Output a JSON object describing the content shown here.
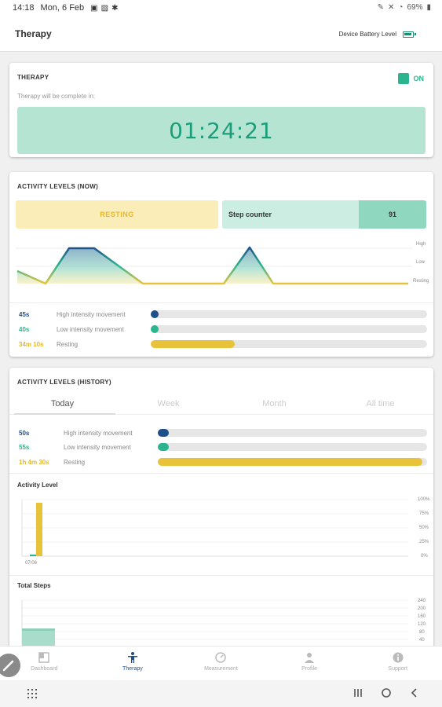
{
  "status": {
    "time": "14:18",
    "date": "Mon, 6 Feb",
    "battery": "69%"
  },
  "appbar": {
    "title": "Therapy",
    "battery_label": "Device Battery Level"
  },
  "therapy": {
    "title": "THERAPY",
    "toggle_label": "ON",
    "subtitle": "Therapy will be complete in:",
    "timer": "01:24:21"
  },
  "now": {
    "title": "ACTIVITY LEVELS (NOW)",
    "state": "RESTING",
    "step_label": "Step counter",
    "step_value": "91",
    "axis": [
      "High",
      "Low",
      "Resting"
    ],
    "rows": [
      {
        "duration": "45s",
        "name": "High intensity movement",
        "fraction": 0.0
      },
      {
        "duration": "40s",
        "name": "Low intensity movement",
        "fraction": 0.0
      },
      {
        "duration": "34m 10s",
        "name": "Resting",
        "fraction": 0.3
      }
    ]
  },
  "history": {
    "title": "ACTIVITY LEVELS (HISTORY)",
    "tabs": [
      "Today",
      "Week",
      "Month",
      "All time"
    ],
    "rows": [
      {
        "duration": "50s",
        "name": "High intensity movement",
        "fraction": 0.0
      },
      {
        "duration": "55s",
        "name": "Low intensity movement",
        "fraction": 0.0
      },
      {
        "duration": "1h 4m 30s",
        "name": "Resting",
        "fraction": 0.98
      }
    ],
    "activity_label": "Activity Level",
    "activity_yticks": [
      "100%",
      "75%",
      "50%",
      "25%",
      "0%"
    ],
    "activity_xlabel": "07/06",
    "steps_label": "Total Steps",
    "steps_yticks": [
      "240",
      "200",
      "160",
      "120",
      "80",
      "40"
    ]
  },
  "nav": [
    "Dashboard",
    "Therapy",
    "Measurement",
    "Profile",
    "Support"
  ],
  "colors": {
    "teal": "#2bb58f",
    "navy": "#1e4f8a",
    "yellow": "#e8c33a",
    "timer_bg": "#b6e4d3"
  }
}
